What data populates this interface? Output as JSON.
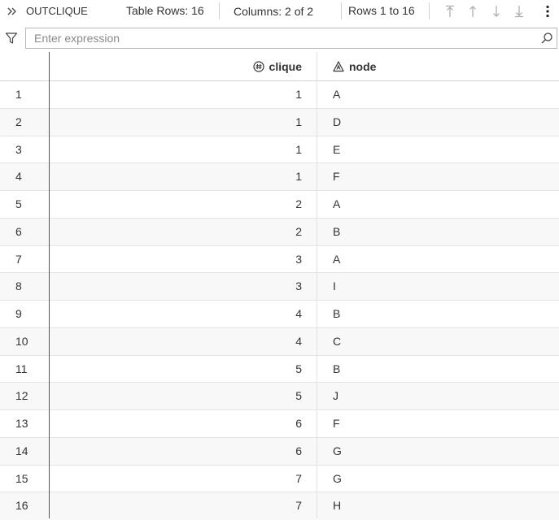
{
  "toolbar": {
    "expand_icon": "double-chevron-right-icon",
    "table_name": "OUTCLIQUE",
    "table_rows": "Table Rows: 16",
    "columns": "Columns: 2 of 2",
    "rows_range": "Rows 1 to 16",
    "nav_icons": [
      "first-page-icon",
      "previous-page-icon",
      "next-page-icon",
      "last-page-icon"
    ],
    "more_icon": "more-vertical-icon"
  },
  "filter": {
    "icon": "filter-icon",
    "placeholder": "Enter expression",
    "value": "",
    "search_icon": "search-icon"
  },
  "columns": [
    {
      "label": "clique",
      "icon": "numeric-column-icon"
    },
    {
      "label": "node",
      "icon": "character-column-icon"
    }
  ],
  "rows": [
    {
      "n": "1",
      "clique": "1",
      "node": "A"
    },
    {
      "n": "2",
      "clique": "1",
      "node": "D"
    },
    {
      "n": "3",
      "clique": "1",
      "node": "E"
    },
    {
      "n": "4",
      "clique": "1",
      "node": "F"
    },
    {
      "n": "5",
      "clique": "2",
      "node": "A"
    },
    {
      "n": "6",
      "clique": "2",
      "node": "B"
    },
    {
      "n": "7",
      "clique": "3",
      "node": "A"
    },
    {
      "n": "8",
      "clique": "3",
      "node": "I"
    },
    {
      "n": "9",
      "clique": "4",
      "node": "B"
    },
    {
      "n": "10",
      "clique": "4",
      "node": "C"
    },
    {
      "n": "11",
      "clique": "5",
      "node": "B"
    },
    {
      "n": "12",
      "clique": "5",
      "node": "J"
    },
    {
      "n": "13",
      "clique": "6",
      "node": "F"
    },
    {
      "n": "14",
      "clique": "6",
      "node": "G"
    },
    {
      "n": "15",
      "clique": "7",
      "node": "G"
    },
    {
      "n": "16",
      "clique": "7",
      "node": "H"
    }
  ],
  "colors": {
    "text": "#333333",
    "nav_disabled": "#a8a8a8",
    "alt_row": "#f8f8f8"
  }
}
